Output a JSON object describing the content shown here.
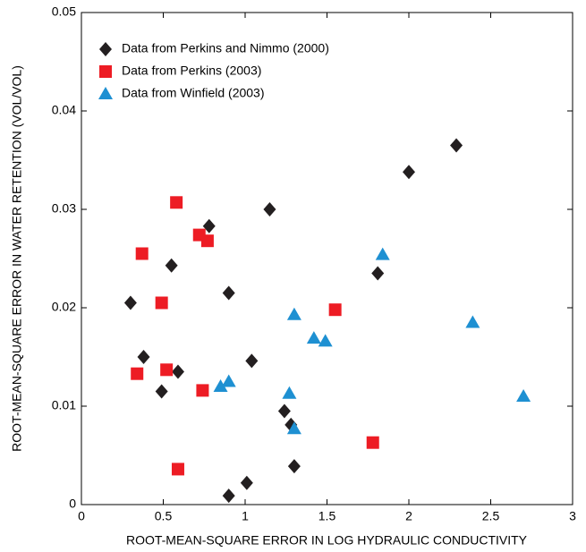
{
  "chart_data": {
    "type": "scatter",
    "xlabel": "ROOT-MEAN-SQUARE ERROR IN LOG HYDRAULIC CONDUCTIVITY",
    "ylabel": "ROOT-MEAN-SQUARE ERROR IN WATER RETENTION (VOL/VOL)",
    "xlim": [
      0,
      3
    ],
    "ylim": [
      0,
      0.05
    ],
    "xticks": [
      0,
      0.5,
      1,
      1.5,
      2,
      2.5,
      3
    ],
    "yticks": [
      0,
      0.01,
      0.02,
      0.03,
      0.04,
      0.05
    ],
    "legend": "upper left",
    "series": [
      {
        "name": "Data from Perkins and Nimmo (2000)",
        "color": "#231f20",
        "marker": "diamond",
        "x": [
          0.3,
          0.38,
          0.49,
          0.59,
          0.55,
          0.78,
          0.9,
          1.15,
          1.04,
          0.9,
          1.01,
          1.24,
          1.28,
          1.3,
          1.81,
          2.0,
          2.29
        ],
        "values": [
          0.0205,
          0.015,
          0.0115,
          0.0135,
          0.0243,
          0.0283,
          0.0215,
          0.03,
          0.0146,
          0.0009,
          0.0022,
          0.0095,
          0.0081,
          0.0039,
          0.0235,
          0.0338,
          0.0365
        ]
      },
      {
        "name": "Data from Perkins (2003)",
        "color": "#ed1c24",
        "marker": "square",
        "x": [
          0.37,
          0.58,
          0.72,
          0.77,
          0.49,
          0.34,
          0.52,
          0.74,
          0.59,
          1.55,
          1.78
        ],
        "values": [
          0.0255,
          0.0307,
          0.0274,
          0.0268,
          0.0205,
          0.0133,
          0.0137,
          0.0116,
          0.0036,
          0.0198,
          0.0063
        ]
      },
      {
        "name": "Data from Winfield (2003)",
        "color": "#1e90d2",
        "marker": "triangle",
        "x": [
          0.85,
          0.9,
          1.27,
          1.3,
          1.3,
          1.42,
          1.49,
          1.84,
          2.39,
          2.7
        ],
        "values": [
          0.012,
          0.0125,
          0.0113,
          0.0077,
          0.0193,
          0.0169,
          0.0166,
          0.0254,
          0.0185,
          0.011
        ]
      }
    ]
  }
}
